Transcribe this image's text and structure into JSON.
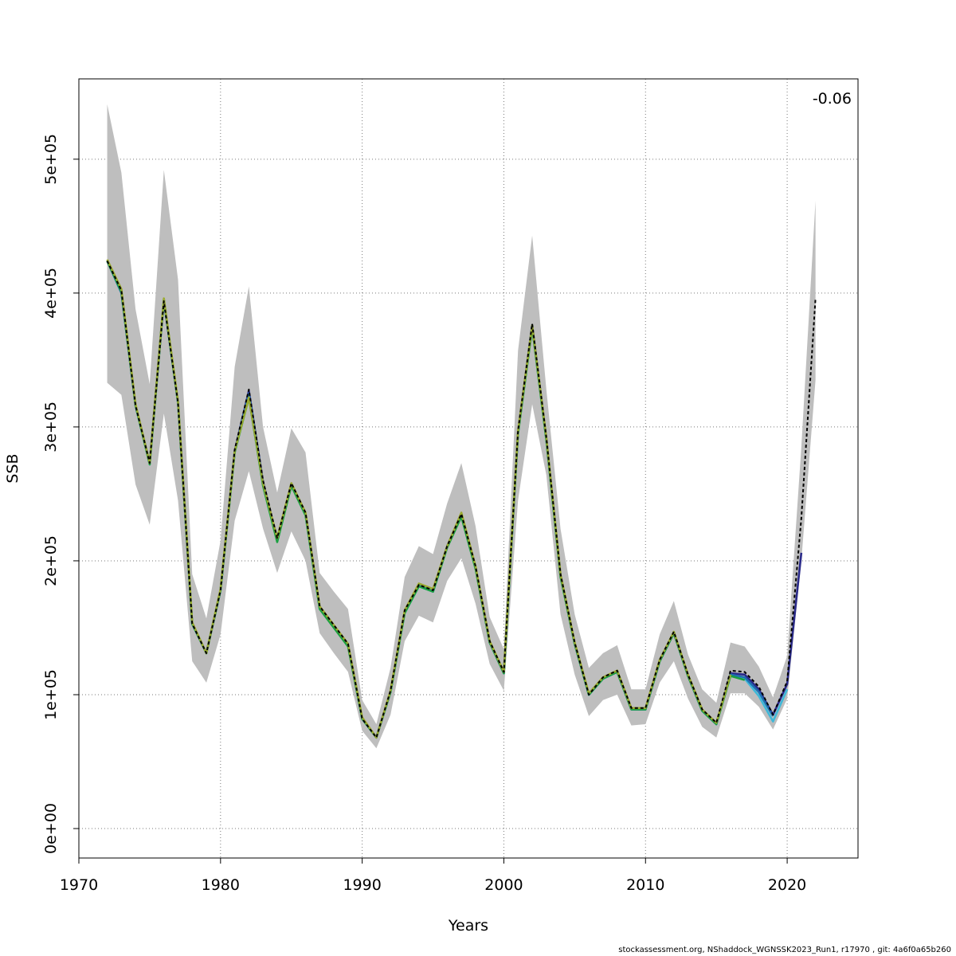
{
  "chart_data": {
    "type": "line",
    "title": "",
    "xlabel": "Years",
    "ylabel": "SSB",
    "xlim": [
      1970,
      2025
    ],
    "ylim": [
      0,
      560000
    ],
    "x_ticks": [
      1970,
      1980,
      1990,
      2000,
      2010,
      2020
    ],
    "x_tick_labels": [
      "1970",
      "1980",
      "1990",
      "2000",
      "2010",
      "2020"
    ],
    "y_ticks": [
      0,
      100000,
      200000,
      300000,
      400000,
      500000
    ],
    "y_tick_labels": [
      "0e+00",
      "1e+05",
      "2e+05",
      "3e+05",
      "4e+05",
      "5e+05"
    ],
    "grid": true,
    "annotation": "-0.06",
    "confidence_band": {
      "x": [
        1972,
        1973,
        1974,
        1975,
        1976,
        1977,
        1978,
        1979,
        1980,
        1981,
        1982,
        1983,
        1984,
        1985,
        1986,
        1987,
        1988,
        1989,
        1990,
        1991,
        1992,
        1993,
        1994,
        1995,
        1996,
        1997,
        1998,
        1999,
        2000,
        2001,
        2002,
        2003,
        2004,
        2005,
        2006,
        2007,
        2008,
        2009,
        2010,
        2011,
        2012,
        2013,
        2014,
        2015,
        2016,
        2017,
        2018,
        2019,
        2020,
        2021,
        2022
      ],
      "lower": [
        333000,
        324000,
        257000,
        227000,
        310000,
        245000,
        125000,
        109000,
        145000,
        230000,
        267000,
        224000,
        191000,
        222000,
        200000,
        146000,
        131000,
        117000,
        73000,
        60000,
        85000,
        140000,
        159000,
        154000,
        185000,
        202000,
        168000,
        123000,
        103000,
        245000,
        317000,
        264000,
        160000,
        115000,
        84000,
        96000,
        100000,
        77000,
        78000,
        109000,
        125000,
        97000,
        76000,
        68000,
        101000,
        101000,
        91000,
        74000,
        97000,
        200000,
        335000
      ],
      "upper": [
        541000,
        490000,
        388000,
        332000,
        492000,
        410000,
        190000,
        157000,
        215000,
        345000,
        405000,
        300000,
        251000,
        299000,
        281000,
        191000,
        177000,
        164000,
        96000,
        78000,
        120000,
        188000,
        211000,
        205000,
        243000,
        273000,
        226000,
        158000,
        134000,
        357000,
        443000,
        328000,
        224000,
        160000,
        120000,
        131000,
        137000,
        104000,
        104000,
        145000,
        170000,
        130000,
        104000,
        94000,
        139000,
        136000,
        121000,
        98000,
        129000,
        285000,
        469000
      ]
    },
    "series": [
      {
        "name": "",
        "color": "#000000",
        "x": [
          1972,
          1973,
          1974,
          1975,
          1976,
          1977,
          1978,
          1979,
          1980,
          1981,
          1982,
          1983,
          1984,
          1985,
          1986,
          1987,
          1988,
          1989,
          1990,
          1991,
          1992,
          1993,
          1994,
          1995,
          1996,
          1997,
          1998,
          1999,
          2000,
          2001,
          2002,
          2003,
          2004,
          2005,
          2006,
          2007,
          2008,
          2009,
          2010,
          2011,
          2012,
          2013,
          2014,
          2015,
          2016,
          2017,
          2018,
          2019,
          2020,
          2021,
          2022
        ],
        "values": [
          424000,
          402000,
          316000,
          273000,
          394000,
          318000,
          153000,
          131000,
          178000,
          283000,
          328000,
          260000,
          217000,
          258000,
          236000,
          166000,
          152000,
          138000,
          82000,
          68000,
          103000,
          163000,
          182000,
          178000,
          211000,
          235000,
          196000,
          140000,
          117000,
          297000,
          377000,
          292000,
          190000,
          139000,
          100000,
          113000,
          118000,
          90000,
          90000,
          126000,
          147000,
          115000,
          89000,
          79000,
          118000,
          117000,
          106000,
          85000,
          110000,
          232000,
          396000
        ],
        "dash": "dashed"
      },
      {
        "name": "",
        "color": "#2a2a8a",
        "x": [
          1972,
          1973,
          1974,
          1975,
          1976,
          1977,
          1978,
          1979,
          1980,
          1981,
          1982,
          1983,
          1984,
          1985,
          1986,
          1987,
          1988,
          1989,
          1990,
          1991,
          1992,
          1993,
          1994,
          1995,
          1996,
          1997,
          1998,
          1999,
          2000,
          2001,
          2002,
          2003,
          2004,
          2005,
          2006,
          2007,
          2008,
          2009,
          2010,
          2011,
          2012,
          2013,
          2014,
          2015,
          2016,
          2017,
          2018,
          2019,
          2020,
          2021
        ],
        "values": [
          424000,
          401000,
          316000,
          273000,
          395000,
          318000,
          153000,
          131000,
          178000,
          282000,
          327000,
          259000,
          216000,
          257000,
          235000,
          165000,
          151000,
          137000,
          82000,
          68000,
          102000,
          162000,
          182000,
          177000,
          211000,
          234000,
          195000,
          139000,
          116000,
          296000,
          376000,
          291000,
          189000,
          138000,
          100000,
          112000,
          117000,
          89000,
          89000,
          125000,
          146000,
          114000,
          88000,
          78000,
          116000,
          115000,
          104000,
          85000,
          108000,
          206000
        ],
        "dash": "solid"
      },
      {
        "name": "",
        "color": "#3fb8d8",
        "x": [
          1972,
          1973,
          1974,
          1975,
          1976,
          1977,
          1978,
          1979,
          1980,
          1981,
          1982,
          1983,
          1984,
          1985,
          1986,
          1987,
          1988,
          1989,
          1990,
          1991,
          1992,
          1993,
          1994,
          1995,
          1996,
          1997,
          1998,
          1999,
          2000,
          2001,
          2002,
          2003,
          2004,
          2005,
          2006,
          2007,
          2008,
          2009,
          2010,
          2011,
          2012,
          2013,
          2014,
          2015,
          2016,
          2017,
          2018,
          2019,
          2020
        ],
        "values": [
          424000,
          402000,
          316000,
          272000,
          395000,
          318000,
          153000,
          131000,
          178000,
          281000,
          323000,
          257000,
          215000,
          257000,
          234000,
          164000,
          151000,
          137000,
          82000,
          68000,
          102000,
          161000,
          181000,
          177000,
          210000,
          234000,
          195000,
          139000,
          116000,
          295000,
          375000,
          290000,
          189000,
          138000,
          100000,
          112000,
          117000,
          89000,
          89000,
          125000,
          146000,
          114000,
          88000,
          78000,
          115000,
          112000,
          99000,
          80000,
          104000
        ],
        "dash": "solid"
      },
      {
        "name": "",
        "color": "#1f6fb0",
        "x": [
          1972,
          1973,
          1974,
          1975,
          1976,
          1977,
          1978,
          1979,
          1980,
          1981,
          1982,
          1983,
          1984,
          1985,
          1986,
          1987,
          1988,
          1989,
          1990,
          1991,
          1992,
          1993,
          1994,
          1995,
          1996,
          1997,
          1998,
          1999,
          2000,
          2001,
          2002,
          2003,
          2004,
          2005,
          2006,
          2007,
          2008,
          2009,
          2010,
          2011,
          2012,
          2013,
          2014,
          2015,
          2016,
          2017,
          2018,
          2019
        ],
        "values": [
          424000,
          400000,
          316000,
          273000,
          395000,
          318000,
          153000,
          131000,
          178000,
          282000,
          325000,
          258000,
          216000,
          257000,
          235000,
          165000,
          151000,
          137000,
          82000,
          68000,
          102000,
          162000,
          182000,
          177000,
          211000,
          234000,
          195000,
          139000,
          116000,
          296000,
          376000,
          291000,
          189000,
          138000,
          100000,
          112000,
          117000,
          89000,
          89000,
          125000,
          146000,
          114000,
          88000,
          78000,
          115000,
          113000,
          102000,
          84000
        ],
        "dash": "solid"
      },
      {
        "name": "",
        "color": "#1aa040",
        "x": [
          1972,
          1973,
          1974,
          1975,
          1976,
          1977,
          1978,
          1979,
          1980,
          1981,
          1982,
          1983,
          1984,
          1985,
          1986,
          1987,
          1988,
          1989,
          1990,
          1991,
          1992,
          1993,
          1994,
          1995,
          1996,
          1997,
          1998,
          1999,
          2000,
          2001,
          2002,
          2003,
          2004,
          2005,
          2006,
          2007,
          2008,
          2009,
          2010,
          2011,
          2012,
          2013,
          2014,
          2015,
          2016,
          2017
        ],
        "values": [
          424000,
          401000,
          316000,
          272000,
          395000,
          318000,
          153000,
          131000,
          178000,
          281000,
          322000,
          256000,
          214000,
          256000,
          234000,
          164000,
          150000,
          136000,
          82000,
          68000,
          102000,
          161000,
          181000,
          177000,
          210000,
          233000,
          194000,
          139000,
          116000,
          295000,
          374000,
          290000,
          188000,
          138000,
          100000,
          112000,
          117000,
          89000,
          89000,
          125000,
          146000,
          114000,
          88000,
          78000,
          114000,
          111000
        ],
        "dash": "solid"
      },
      {
        "name": "",
        "color": "#9aaa30",
        "x": [
          1972,
          1973,
          1974,
          1975,
          1976,
          1977,
          1978,
          1979,
          1980,
          1981,
          1982,
          1983,
          1984,
          1985,
          1986,
          1987,
          1988,
          1989,
          1990,
          1991,
          1992,
          1993,
          1994,
          1995,
          1996,
          1997,
          1998,
          1999,
          2000,
          2001,
          2002,
          2003,
          2004,
          2005,
          2006,
          2007,
          2008,
          2009,
          2010,
          2011,
          2012,
          2013,
          2014,
          2015,
          2016
        ],
        "values": [
          425000,
          403000,
          317000,
          273000,
          396000,
          319000,
          154000,
          131000,
          179000,
          282000,
          322000,
          258000,
          217000,
          258000,
          236000,
          166000,
          152000,
          138000,
          83000,
          68000,
          103000,
          163000,
          183000,
          179000,
          211000,
          236000,
          196000,
          140000,
          117000,
          297000,
          376000,
          292000,
          190000,
          139000,
          101000,
          113000,
          118000,
          90000,
          90000,
          126000,
          147000,
          115000,
          89000,
          79000,
          115000
        ],
        "dash": "solid"
      }
    ],
    "band_color": "#bebebe",
    "footer": "stockassessment.org, NShaddock_WGNSSK2023_Run1, r17970 , git: 4a6f0a65b260"
  }
}
